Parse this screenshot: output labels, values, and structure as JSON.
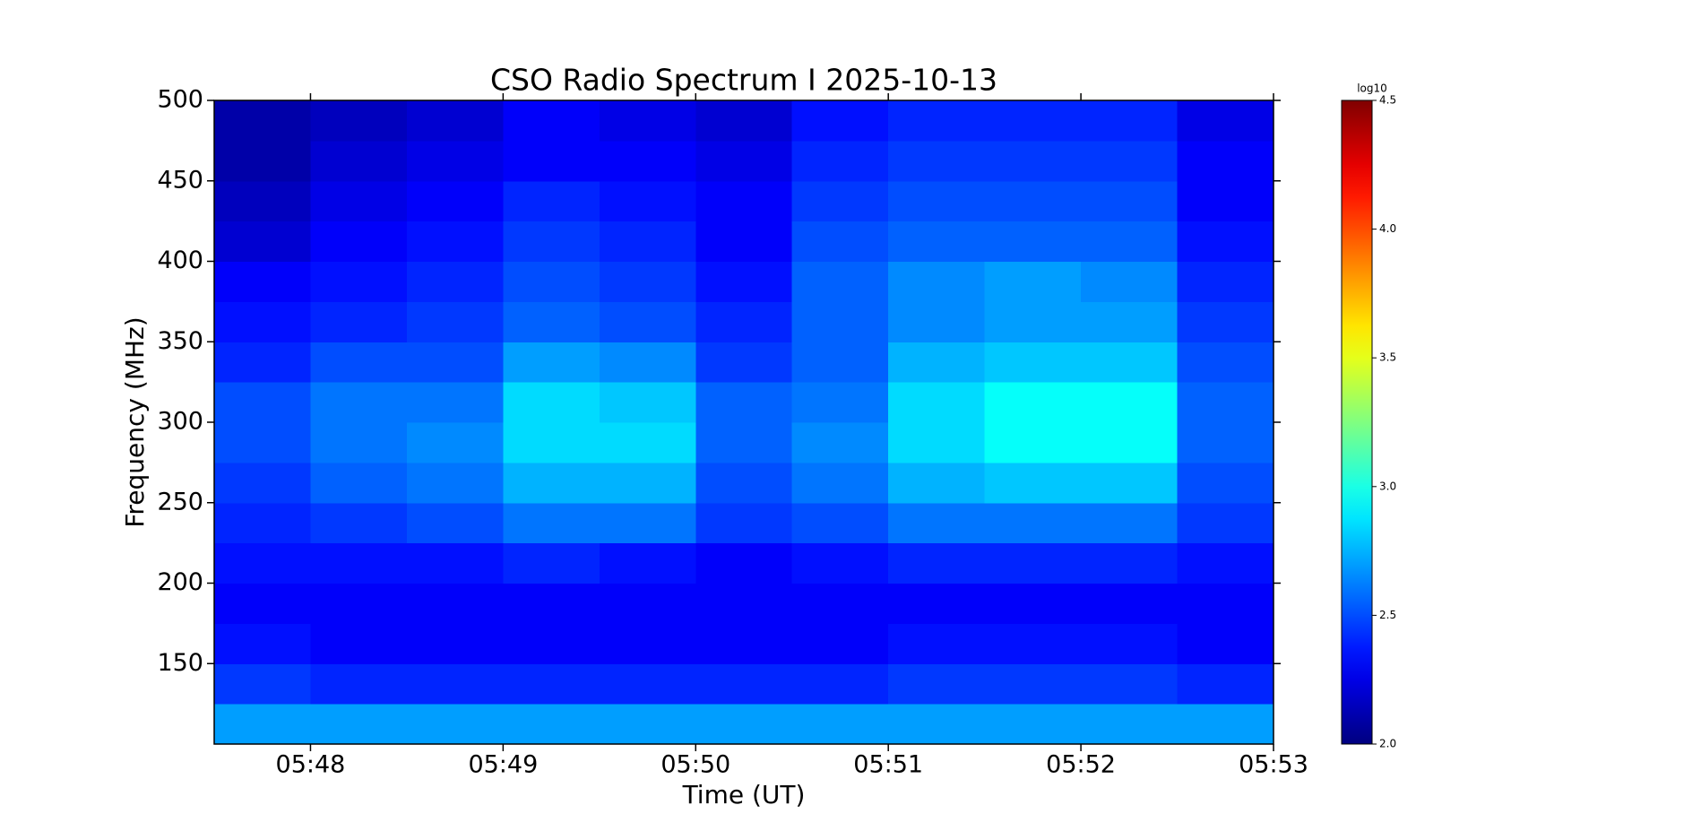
{
  "chart_data": {
    "type": "heatmap",
    "title": "CSO Radio Spectrum I 2025-10-13",
    "x_label": "Time (UT)",
    "y_label": "Frequency (MHz)",
    "colorbar_label": "log10",
    "colormap": "jet",
    "xlim": [
      347.5,
      353
    ],
    "xticks": [
      {
        "value": 348,
        "label": "05:48"
      },
      {
        "value": 349,
        "label": "05:49"
      },
      {
        "value": 350,
        "label": "05:50"
      },
      {
        "value": 351,
        "label": "05:51"
      },
      {
        "value": 352,
        "label": "05:52"
      },
      {
        "value": 353,
        "label": "05:53"
      }
    ],
    "ylim": [
      100,
      500
    ],
    "yticks": [
      150,
      200,
      250,
      300,
      350,
      400,
      450,
      500
    ],
    "clim": [
      2.0,
      4.5
    ],
    "cticks": [
      {
        "value": 2.0,
        "label": "2.0"
      },
      {
        "value": 2.5,
        "label": "2.5"
      },
      {
        "value": 3.0,
        "label": "3.0"
      },
      {
        "value": 3.5,
        "label": "3.5"
      },
      {
        "value": 4.0,
        "label": "4.0"
      },
      {
        "value": 4.5,
        "label": "4.5"
      }
    ],
    "xbins": [
      347.5,
      348,
      348.5,
      349,
      349.5,
      350,
      350.5,
      351,
      351.5,
      352,
      352.5,
      353
    ],
    "ybins": [
      100,
      125,
      150,
      175,
      200,
      225,
      250,
      275,
      300,
      325,
      350,
      375,
      400,
      425,
      450,
      475,
      500
    ],
    "z": [
      [
        2.7,
        2.7,
        2.7,
        2.7,
        2.7,
        2.7,
        2.7,
        2.7,
        2.7,
        2.7,
        2.7
      ],
      [
        2.45,
        2.4,
        2.4,
        2.4,
        2.4,
        2.4,
        2.4,
        2.45,
        2.45,
        2.45,
        2.4
      ],
      [
        2.35,
        2.3,
        2.3,
        2.3,
        2.3,
        2.3,
        2.3,
        2.35,
        2.35,
        2.35,
        2.3
      ],
      [
        2.3,
        2.3,
        2.3,
        2.3,
        2.3,
        2.3,
        2.3,
        2.3,
        2.3,
        2.3,
        2.3
      ],
      [
        2.35,
        2.35,
        2.35,
        2.4,
        2.35,
        2.3,
        2.35,
        2.4,
        2.4,
        2.4,
        2.35
      ],
      [
        2.4,
        2.45,
        2.5,
        2.6,
        2.6,
        2.45,
        2.5,
        2.6,
        2.6,
        2.6,
        2.45
      ],
      [
        2.45,
        2.55,
        2.6,
        2.75,
        2.75,
        2.5,
        2.6,
        2.75,
        2.8,
        2.8,
        2.5
      ],
      [
        2.5,
        2.6,
        2.65,
        2.85,
        2.85,
        2.55,
        2.65,
        2.85,
        2.95,
        2.95,
        2.55
      ],
      [
        2.5,
        2.6,
        2.6,
        2.85,
        2.8,
        2.55,
        2.6,
        2.85,
        2.95,
        2.95,
        2.55
      ],
      [
        2.4,
        2.5,
        2.5,
        2.7,
        2.65,
        2.45,
        2.55,
        2.75,
        2.8,
        2.8,
        2.5
      ],
      [
        2.35,
        2.4,
        2.45,
        2.55,
        2.5,
        2.4,
        2.55,
        2.65,
        2.7,
        2.7,
        2.45
      ],
      [
        2.3,
        2.35,
        2.4,
        2.5,
        2.45,
        2.35,
        2.55,
        2.65,
        2.7,
        2.65,
        2.4
      ],
      [
        2.2,
        2.3,
        2.35,
        2.45,
        2.4,
        2.3,
        2.5,
        2.55,
        2.55,
        2.55,
        2.35
      ],
      [
        2.15,
        2.25,
        2.3,
        2.4,
        2.35,
        2.3,
        2.45,
        2.5,
        2.5,
        2.5,
        2.3
      ],
      [
        2.1,
        2.2,
        2.25,
        2.3,
        2.3,
        2.25,
        2.4,
        2.45,
        2.45,
        2.45,
        2.3
      ],
      [
        2.1,
        2.15,
        2.2,
        2.3,
        2.25,
        2.2,
        2.35,
        2.4,
        2.4,
        2.4,
        2.25
      ]
    ]
  }
}
